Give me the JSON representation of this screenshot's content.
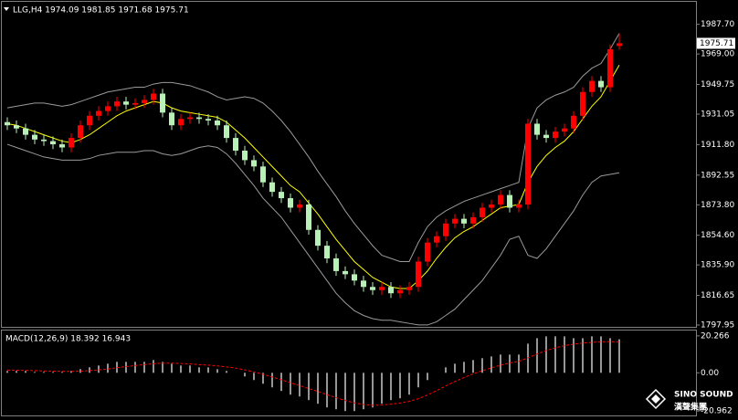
{
  "chart_data": [
    {
      "type": "candlestick",
      "title": "LLG,H4 1974.09 1981.85 1971.68 1975.71",
      "ohlc": {
        "open": [
          1926,
          1924,
          1922,
          1918,
          1915,
          1914,
          1912,
          1910,
          1916,
          1924,
          1930,
          1933,
          1936,
          1939,
          1937,
          1938,
          1940,
          1944,
          1932,
          1924,
          1928,
          1929,
          1928,
          1927,
          1924,
          1916,
          1908,
          1902,
          1898,
          1888,
          1882,
          1878,
          1872,
          1874,
          1858,
          1848,
          1840,
          1832,
          1830,
          1826,
          1822,
          1820,
          1822,
          1818,
          1820,
          1822,
          1838,
          1850,
          1854,
          1862,
          1865,
          1862,
          1866,
          1872,
          1874,
          1880,
          1872,
          1874,
          1925,
          1918,
          1916,
          1920,
          1922,
          1930,
          1945,
          1952,
          1948,
          1974.09
        ],
        "high": [
          1929,
          1927,
          1925,
          1921,
          1918,
          1917,
          1915,
          1919,
          1927,
          1933,
          1936,
          1939,
          1942,
          1942,
          1941,
          1943,
          1947,
          1947,
          1935,
          1931,
          1932,
          1932,
          1931,
          1930,
          1927,
          1919,
          1911,
          1905,
          1901,
          1891,
          1885,
          1881,
          1877,
          1877,
          1861,
          1851,
          1843,
          1835,
          1833,
          1829,
          1825,
          1825,
          1825,
          1823,
          1825,
          1841,
          1853,
          1857,
          1865,
          1868,
          1868,
          1869,
          1875,
          1877,
          1883,
          1883,
          1877,
          1928,
          1928,
          1921,
          1923,
          1925,
          1933,
          1948,
          1955,
          1955,
          1975,
          1981.85
        ],
        "low": [
          1921,
          1919,
          1915,
          1912,
          1911,
          1909,
          1907,
          1907,
          1913,
          1921,
          1927,
          1930,
          1933,
          1934,
          1934,
          1935,
          1937,
          1929,
          1921,
          1921,
          1925,
          1925,
          1924,
          1921,
          1913,
          1905,
          1899,
          1895,
          1885,
          1879,
          1875,
          1869,
          1869,
          1855,
          1845,
          1837,
          1829,
          1827,
          1823,
          1819,
          1817,
          1817,
          1815,
          1815,
          1817,
          1819,
          1835,
          1847,
          1851,
          1859,
          1859,
          1859,
          1863,
          1869,
          1871,
          1869,
          1869,
          1871,
          1915,
          1913,
          1913,
          1917,
          1919,
          1927,
          1942,
          1945,
          1945,
          1971.68
        ],
        "close": [
          1924,
          1922,
          1918,
          1915,
          1914,
          1912,
          1910,
          1916,
          1924,
          1930,
          1933,
          1936,
          1939,
          1937,
          1938,
          1940,
          1944,
          1932,
          1924,
          1928,
          1929,
          1928,
          1927,
          1924,
          1916,
          1908,
          1902,
          1898,
          1888,
          1882,
          1878,
          1872,
          1874,
          1858,
          1848,
          1840,
          1832,
          1830,
          1826,
          1822,
          1820,
          1822,
          1818,
          1820,
          1822,
          1838,
          1850,
          1854,
          1862,
          1865,
          1862,
          1866,
          1872,
          1874,
          1880,
          1872,
          1874,
          1925,
          1918,
          1916,
          1920,
          1922,
          1930,
          1945,
          1952,
          1948,
          1972,
          1975.71
        ]
      },
      "up_color": "#ff0000",
      "down_color": "#b8f0b8",
      "overlays": [
        {
          "color": "#9a9a9a",
          "values": [
            1935,
            1936,
            1937,
            1938,
            1938,
            1937,
            1936,
            1937,
            1939,
            1941,
            1943,
            1945,
            1946,
            1947,
            1948,
            1948,
            1950,
            1951,
            1951,
            1950,
            1949,
            1947,
            1945,
            1942,
            1940,
            1941,
            1942,
            1941,
            1938,
            1933,
            1927,
            1920,
            1912,
            1904,
            1895,
            1887,
            1879,
            1870,
            1862,
            1855,
            1848,
            1842,
            1840,
            1838,
            1838,
            1850,
            1860,
            1866,
            1870,
            1873,
            1876,
            1878,
            1880,
            1882,
            1884,
            1886,
            1888,
            1922,
            1935,
            1940,
            1943,
            1945,
            1948,
            1955,
            1960,
            1963,
            1972,
            1982
          ]
        },
        {
          "color": "#9a9a9a",
          "values": [
            1912,
            1910,
            1908,
            1906,
            1904,
            1903,
            1902,
            1902,
            1902,
            1903,
            1905,
            1906,
            1907,
            1907,
            1907,
            1908,
            1908,
            1906,
            1905,
            1906,
            1908,
            1910,
            1911,
            1910,
            1906,
            1900,
            1893,
            1886,
            1878,
            1872,
            1866,
            1858,
            1850,
            1842,
            1834,
            1826,
            1818,
            1812,
            1807,
            1804,
            1802,
            1801,
            1801,
            1800,
            1799,
            1798,
            1798,
            1800,
            1804,
            1808,
            1814,
            1820,
            1826,
            1834,
            1842,
            1852,
            1854,
            1842,
            1840,
            1846,
            1854,
            1862,
            1870,
            1880,
            1888,
            1892,
            1893,
            1894
          ]
        },
        {
          "color": "#ffff00",
          "values": [
            1925,
            1924,
            1922,
            1920,
            1918,
            1916,
            1914,
            1913,
            1915,
            1918,
            1922,
            1926,
            1930,
            1933,
            1935,
            1937,
            1939,
            1938,
            1935,
            1933,
            1932,
            1931,
            1930,
            1929,
            1926,
            1921,
            1916,
            1910,
            1904,
            1898,
            1892,
            1886,
            1882,
            1875,
            1868,
            1860,
            1852,
            1845,
            1838,
            1833,
            1828,
            1825,
            1822,
            1821,
            1821,
            1826,
            1832,
            1840,
            1847,
            1853,
            1857,
            1860,
            1864,
            1868,
            1872,
            1873,
            1874,
            1888,
            1898,
            1905,
            1910,
            1914,
            1920,
            1928,
            1936,
            1942,
            1952,
            1962
          ]
        }
      ],
      "current_price": 1975.71,
      "ylim": [
        1796.8,
        2001.9
      ],
      "yticks": [
        {
          "value": 1987.7,
          "label": "1987.70"
        },
        {
          "value": 1969,
          "label": "1969.00"
        },
        1949.75,
        1931.05,
        {
          "value": 1911.8,
          "label": "1911.80"
        },
        1892.55,
        {
          "value": 1873.8,
          "label": "1873.80"
        },
        {
          "value": 1854.6,
          "label": "1854.60"
        },
        {
          "value": 1835.9,
          "label": "1835.90"
        },
        1816.65,
        1797.95
      ],
      "grid": false
    },
    {
      "type": "macd",
      "title": "MACD(12,26,9) 18.392 16.943",
      "series": [
        {
          "color": "#c8c8c8",
          "style": "histogram",
          "values": [
            1,
            1,
            1,
            0.5,
            0.5,
            0.5,
            0.5,
            1,
            2,
            3,
            4,
            5,
            6,
            6,
            6,
            6,
            7,
            6,
            5,
            4,
            4,
            3,
            3,
            2,
            1,
            0,
            -2,
            -4,
            -6,
            -8,
            -10,
            -12,
            -13,
            -15,
            -17,
            -19,
            -20,
            -21,
            -21,
            -20,
            -19,
            -17,
            -15,
            -14,
            -12,
            -8,
            -4,
            0,
            3,
            5,
            6,
            7,
            8,
            9,
            10,
            10,
            10,
            16,
            19,
            20,
            20,
            20,
            19,
            19,
            20,
            20,
            19,
            18.392
          ]
        },
        {
          "color": "#ff0000",
          "style": "dashed",
          "values": [
            1.5,
            1.4,
            1.3,
            1.2,
            1,
            0.9,
            0.8,
            0.8,
            0.9,
            1.2,
            1.6,
            2.1,
            2.8,
            3.4,
            4,
            4.5,
            5,
            5.3,
            5.3,
            5.1,
            4.9,
            4.5,
            4.2,
            3.8,
            3.2,
            2.6,
            1.6,
            0.5,
            -0.8,
            -2.3,
            -3.8,
            -5.5,
            -7,
            -8.6,
            -10.3,
            -12,
            -13.6,
            -15.2,
            -16.5,
            -17.4,
            -17.8,
            -17.7,
            -17.2,
            -16.6,
            -15.7,
            -14.2,
            -12.2,
            -9.8,
            -7.2,
            -4.8,
            -2.6,
            -0.6,
            1.1,
            2.7,
            4.2,
            5.4,
            6.3,
            8.2,
            10.3,
            12.2,
            13.7,
            14.9,
            15.7,
            16.3,
            16.7,
            17,
            17.1,
            16.943
          ]
        }
      ],
      "ylim": [
        -23.4,
        23.2
      ],
      "yticks": [
        20.266,
        {
          "value": 0,
          "label": "0.00"
        },
        -20.962
      ],
      "grid": false
    }
  ],
  "logo": {
    "name": "SINO SOUND",
    "subtitle": "漢聲集團"
  }
}
